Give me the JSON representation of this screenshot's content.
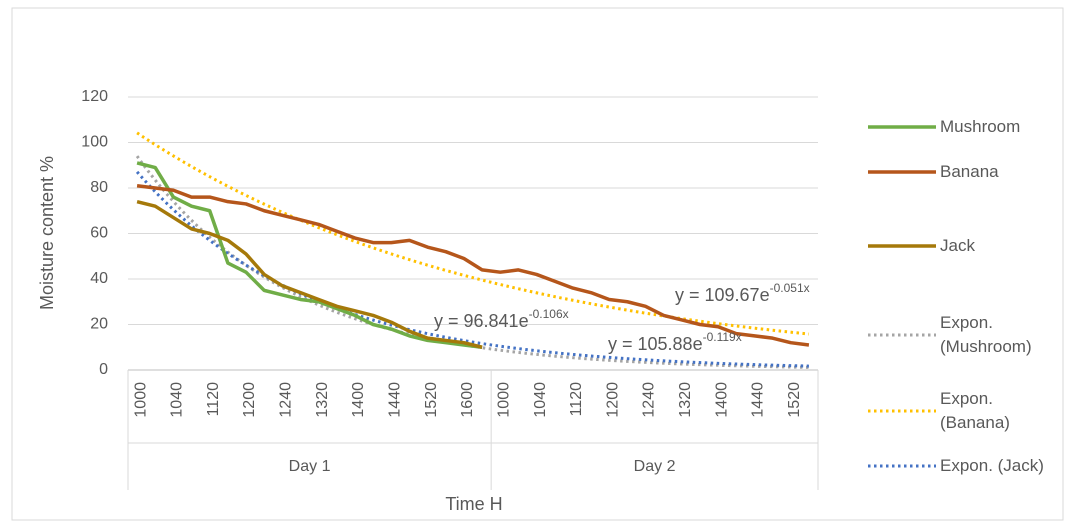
{
  "chart_data": {
    "type": "line",
    "x_label": "Time H",
    "y_label": "Moisture content %",
    "groups": [
      {
        "name": "Day 1",
        "categories": [
          "1000",
          null,
          "1040",
          null,
          "1120",
          null,
          "1200",
          null,
          "1240",
          null,
          "1320",
          null,
          "1400",
          null,
          "1440",
          null,
          "1520",
          null,
          "1600",
          null
        ]
      },
      {
        "name": "Day 2",
        "categories": [
          "1000",
          null,
          "1040",
          null,
          "1120",
          null,
          "1200",
          null,
          "1240",
          null,
          "1320",
          null,
          "1400",
          null,
          "1440",
          null,
          "1520",
          null
        ]
      }
    ],
    "ylim": [
      0,
      120
    ],
    "yticks": [
      0,
      20,
      40,
      60,
      80,
      100,
      120
    ],
    "grid": true,
    "series": [
      {
        "name": "Mushroom",
        "color": "#70ad47",
        "values": [
          91,
          89,
          76,
          72,
          70,
          47,
          43,
          35,
          33,
          31,
          30,
          27,
          24,
          20,
          18,
          15,
          13,
          12,
          11,
          10,
          null,
          null,
          null,
          null,
          null,
          null,
          null,
          null,
          null,
          null,
          null,
          null,
          null,
          null,
          null,
          null,
          null,
          null
        ]
      },
      {
        "name": "Banana",
        "color": "#b5561b",
        "values": [
          81,
          80,
          79,
          76,
          76,
          74,
          73,
          70,
          68,
          66,
          64,
          61,
          58,
          56,
          56,
          57,
          54,
          52,
          49,
          44,
          43,
          44,
          42,
          39,
          36,
          34,
          31,
          30,
          28,
          24,
          22,
          20,
          19,
          16,
          15,
          14,
          12,
          11
        ]
      },
      {
        "name": "Jack",
        "color": "#a5790a",
        "values": [
          74,
          72,
          67,
          62,
          60,
          57,
          51,
          42,
          37,
          34,
          31,
          28,
          26,
          24,
          21,
          17,
          14,
          13,
          12,
          10,
          null,
          null,
          null,
          null,
          null,
          null,
          null,
          null,
          null,
          null,
          null,
          null,
          null,
          null,
          null,
          null,
          null,
          null
        ]
      }
    ],
    "trendlines": [
      {
        "name": "Expon. (Mushroom)",
        "color": "#a5a5a5",
        "a": 105.88,
        "b": -0.119,
        "equation": {
          "base": "y = 105.88e",
          "exponent": "-0.119x"
        }
      },
      {
        "name": "Expon. (Banana)",
        "color": "#ffc000",
        "a": 109.67,
        "b": -0.051,
        "equation": {
          "base": "y = 109.67e",
          "exponent": "-0.051x"
        }
      },
      {
        "name": "Expon. (Jack)",
        "color": "#4472c4",
        "a": 96.841,
        "b": -0.106,
        "equation": {
          "base": "y = 96.841e",
          "exponent": "-0.106x"
        }
      }
    ]
  }
}
